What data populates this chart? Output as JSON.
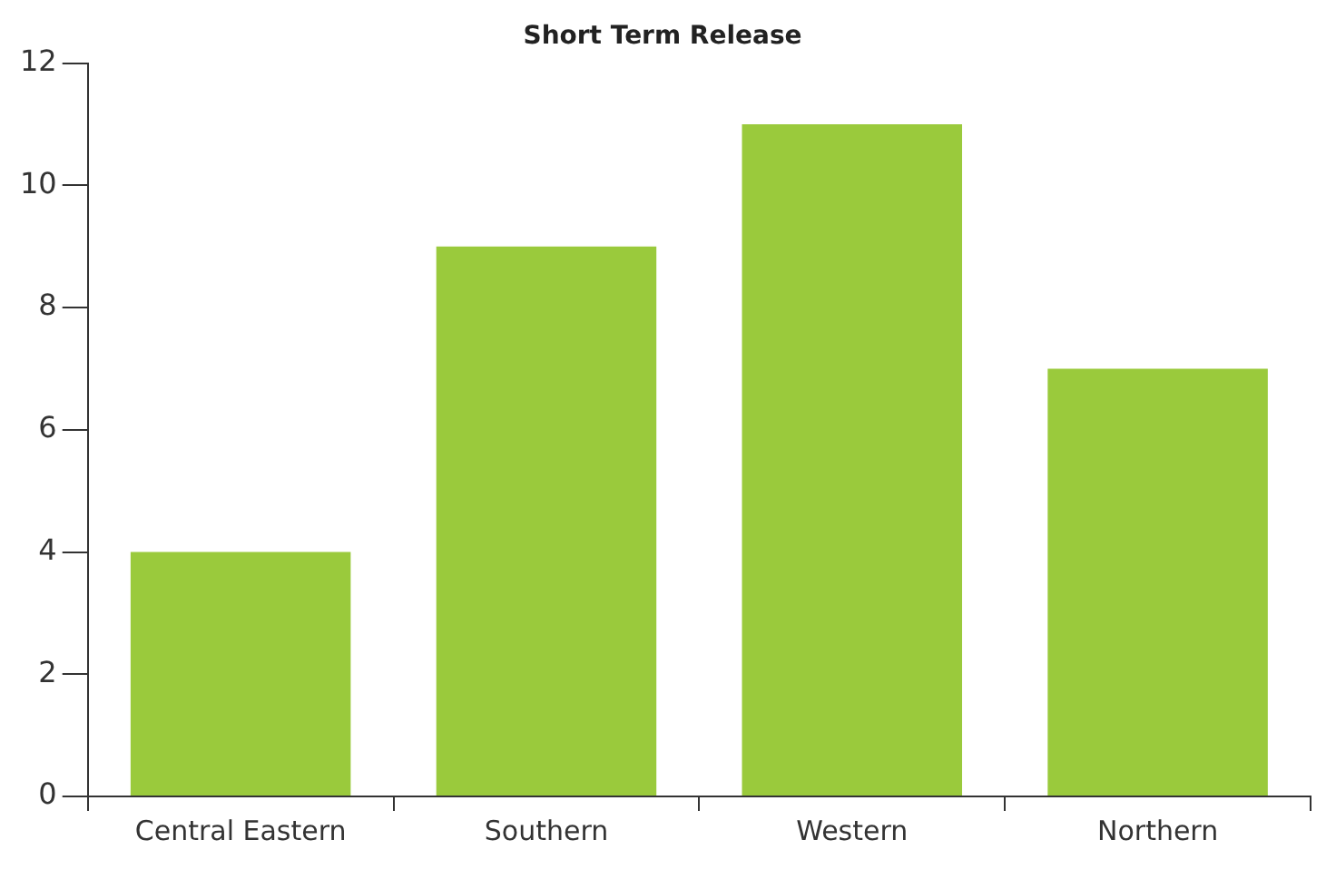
{
  "chart_data": {
    "type": "bar",
    "title": "Short Term Release",
    "categories": [
      "Central Eastern",
      "Southern",
      "Western",
      "Northern"
    ],
    "values": [
      4,
      9,
      11,
      7
    ],
    "color": "#9aca3c",
    "ylim": [
      0,
      12
    ],
    "yticks": [
      0,
      2,
      4,
      6,
      8,
      10,
      12
    ],
    "grid": false,
    "legend": false
  }
}
